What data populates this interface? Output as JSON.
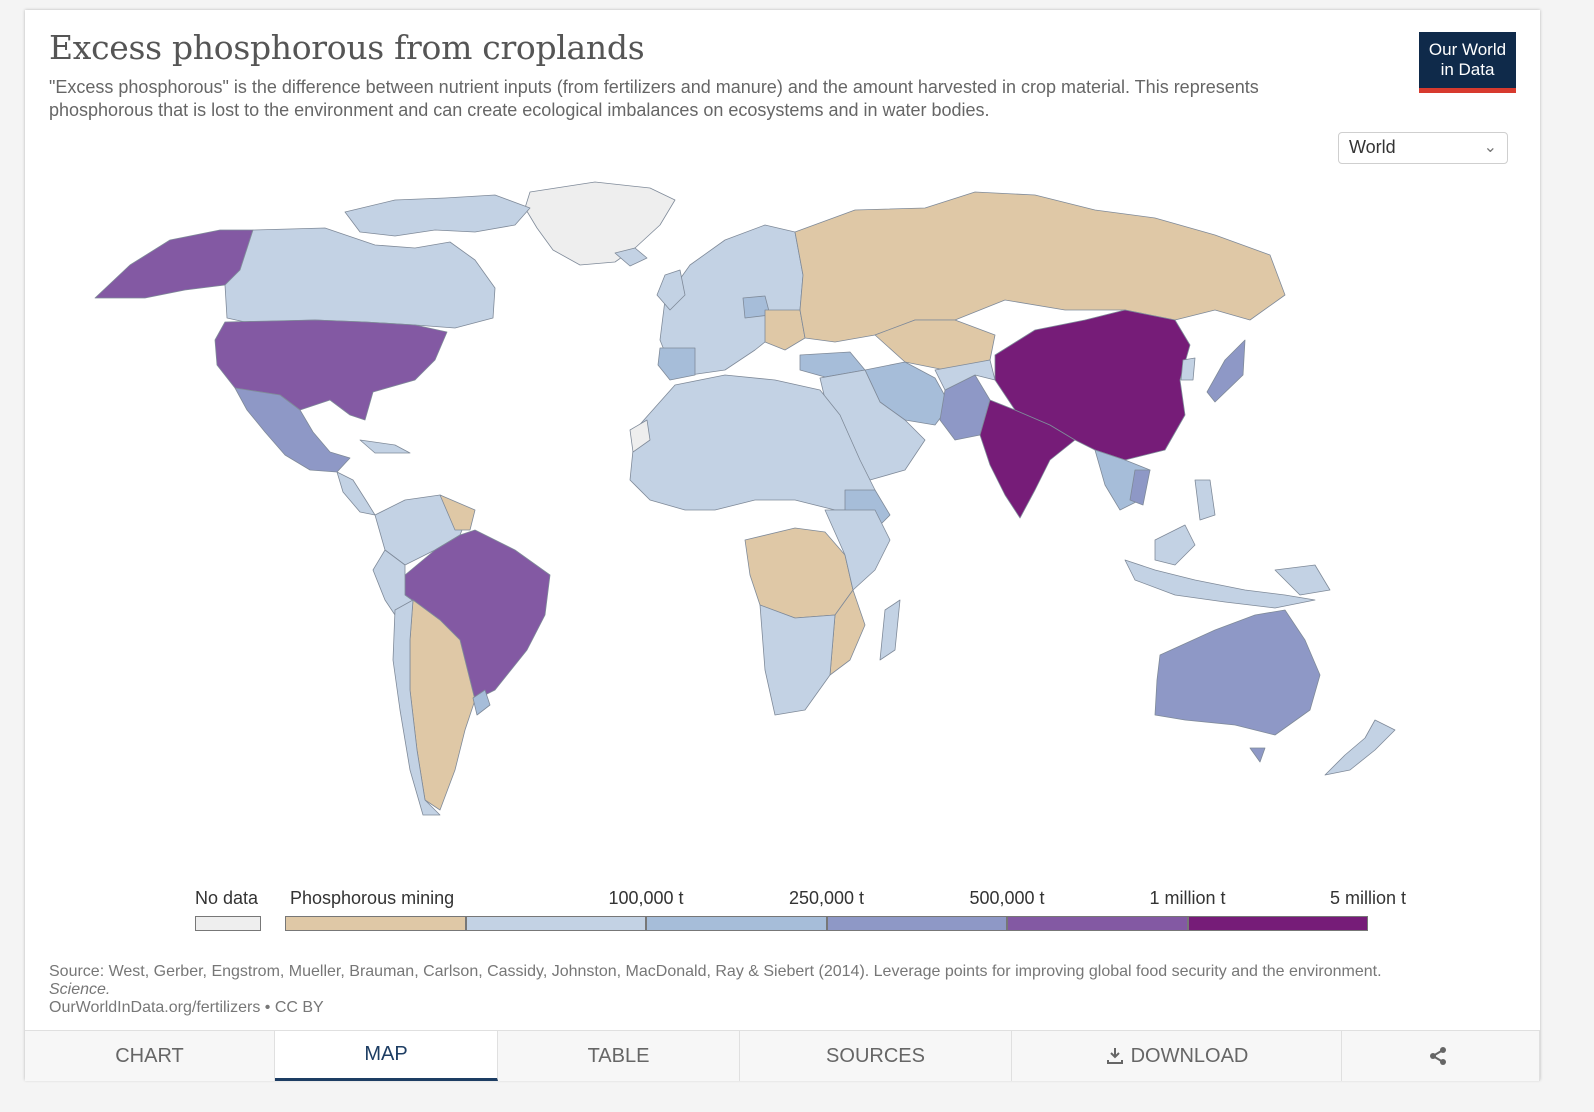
{
  "header": {
    "title": "Excess phosphorous from croplands",
    "subtitle": "\"Excess phosphorous\" is the difference between nutrient inputs (from fertilizers and manure) and the amount harvested in crop material. This represents phosphorous that is lost to the environment and can create ecological imbalances on ecosystems and in water bodies.",
    "logo_line1": "Our World",
    "logo_line2": "in Data"
  },
  "controls": {
    "region": "World",
    "region_icon": "chevron-down-icon"
  },
  "legend": {
    "no_data_label": "No data",
    "no_data_color": "#eeeeee",
    "bins": [
      {
        "label": "Phosphorous mining",
        "color": "#dfc8a6"
      },
      {
        "label": "",
        "color": "#c3d2e4"
      },
      {
        "label": "100,000 t",
        "color": "#a6bdd9"
      },
      {
        "label": "250,000 t",
        "color": "#8e98c6"
      },
      {
        "label": "500,000 t",
        "color": "#8359a3"
      },
      {
        "label": "1 million t",
        "color": "#761c78"
      }
    ],
    "end_label": "5 million t"
  },
  "map": {
    "colors": {
      "no_data": "#eeeeee",
      "mining": "#dfc8a6",
      "low": "#c3d2e4",
      "med": "#a6bdd9",
      "high": "#8e98c6",
      "very_high": "#8359a3",
      "top": "#761c78"
    }
  },
  "footer": {
    "source_prefix": "Source: West, Gerber, Engstrom, Mueller, Brauman, Carlson, Cassidy, Johnston, MacDonald, Ray & Siebert (2014). Leverage points for improving global food security and the environment.",
    "source_journal": "Science.",
    "url_text": "OurWorldInData.org/fertilizers • CC BY"
  },
  "tabs": [
    {
      "label": "CHART",
      "active": false
    },
    {
      "label": "MAP",
      "active": true
    },
    {
      "label": "TABLE",
      "active": false
    },
    {
      "label": "SOURCES",
      "active": false
    },
    {
      "label": "DOWNLOAD",
      "active": false,
      "icon": "download-icon"
    },
    {
      "label": "",
      "active": false,
      "icon": "share-icon"
    }
  ]
}
